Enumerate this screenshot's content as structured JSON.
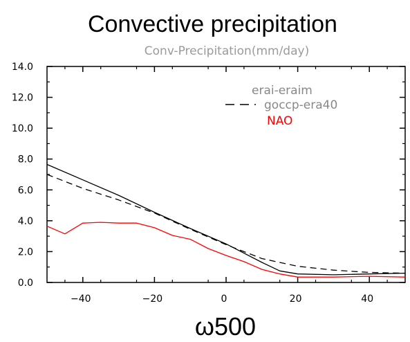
{
  "chart_data": {
    "type": "line",
    "title": "Convective precipitation",
    "subtitle": "Conv-Precipitation(mm/day)",
    "xlabel": "ω500",
    "ylabel": "",
    "xlim": [
      -50,
      50
    ],
    "ylim": [
      0,
      14
    ],
    "xticks": [
      -40,
      -20,
      0,
      20,
      40
    ],
    "yticks": [
      0,
      2,
      4,
      6,
      8,
      10,
      12,
      14
    ],
    "xtick_labels": [
      "−40",
      "−20",
      "0",
      "20",
      "40"
    ],
    "ytick_labels": [
      "0.0",
      "2.0",
      "4.0",
      "6.0",
      "8.0",
      "10.0",
      "12.0",
      "14.0"
    ],
    "grid": false,
    "legend_position": "top-right",
    "series": [
      {
        "name": "erai-eraim",
        "color": "#000000",
        "dash": "solid",
        "x": [
          -50,
          -40,
          -30,
          -20,
          -10,
          0,
          10,
          15,
          20,
          30,
          40,
          50
        ],
        "y": [
          7.65,
          6.65,
          5.65,
          4.55,
          3.5,
          2.5,
          1.3,
          0.75,
          0.55,
          0.5,
          0.55,
          0.6
        ]
      },
      {
        "name": "goccp-era40",
        "color": "#000000",
        "dash": "dashed",
        "x": [
          -50,
          -40,
          -30,
          -20,
          -10,
          0,
          10,
          20,
          30,
          40,
          50
        ],
        "y": [
          7.0,
          6.1,
          5.35,
          4.5,
          3.45,
          2.45,
          1.55,
          1.05,
          0.8,
          0.65,
          0.6
        ]
      },
      {
        "name": "NAO",
        "color": "#ff0000",
        "dash": "solid",
        "x": [
          -50,
          -45,
          -40,
          -35,
          -30,
          -25,
          -20,
          -15,
          -10,
          -5,
          0,
          5,
          10,
          15,
          20,
          30,
          40,
          50
        ],
        "y": [
          3.65,
          3.15,
          3.85,
          3.9,
          3.85,
          3.85,
          3.55,
          3.05,
          2.8,
          2.2,
          1.75,
          1.35,
          0.85,
          0.55,
          0.35,
          0.35,
          0.4,
          0.35
        ]
      }
    ]
  }
}
